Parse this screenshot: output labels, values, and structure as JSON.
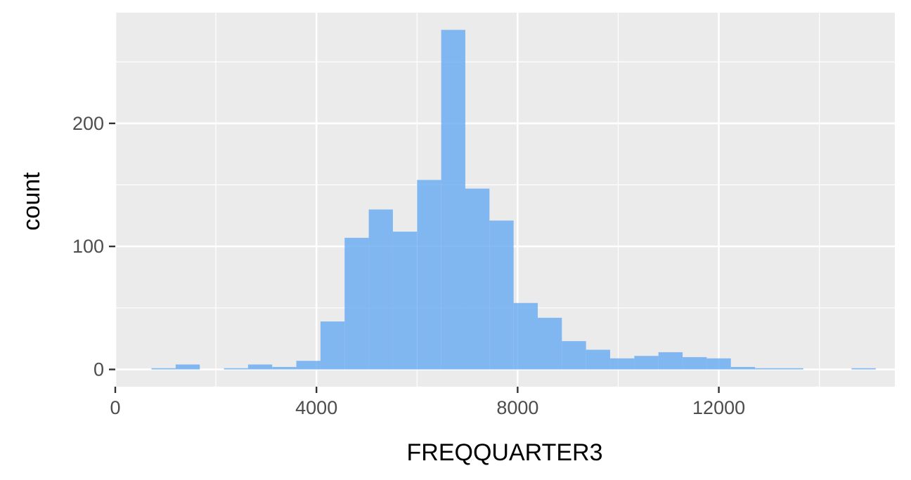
{
  "chart_data": {
    "type": "bar",
    "title": "",
    "xlabel": "FREQQUARTER3",
    "ylabel": "count",
    "xlim": [
      0,
      15500
    ],
    "ylim": [
      -14,
      290
    ],
    "x_ticks": [
      0,
      4000,
      8000,
      12000
    ],
    "x_tick_labels": [
      "0",
      "4000",
      "8000",
      "12000"
    ],
    "x_minor_ticks": [
      2000,
      6000,
      10000,
      14000
    ],
    "y_ticks": [
      0,
      100,
      200
    ],
    "y_tick_labels": [
      "0",
      "100",
      "200"
    ],
    "y_minor_ticks": [
      50,
      150,
      250
    ],
    "grid": true,
    "bins": [
      {
        "x0": 720,
        "x1": 1200,
        "count": 1
      },
      {
        "x0": 1200,
        "x1": 1680,
        "count": 4
      },
      {
        "x0": 1680,
        "x1": 2160,
        "count": 0
      },
      {
        "x0": 2160,
        "x1": 2640,
        "count": 1
      },
      {
        "x0": 2640,
        "x1": 3120,
        "count": 4
      },
      {
        "x0": 3120,
        "x1": 3600,
        "count": 2
      },
      {
        "x0": 3600,
        "x1": 4080,
        "count": 7
      },
      {
        "x0": 4080,
        "x1": 4560,
        "count": 39
      },
      {
        "x0": 4560,
        "x1": 5040,
        "count": 107
      },
      {
        "x0": 5040,
        "x1": 5520,
        "count": 130
      },
      {
        "x0": 5520,
        "x1": 6000,
        "count": 112
      },
      {
        "x0": 6000,
        "x1": 6480,
        "count": 154
      },
      {
        "x0": 6480,
        "x1": 6960,
        "count": 276
      },
      {
        "x0": 6960,
        "x1": 7440,
        "count": 147
      },
      {
        "x0": 7440,
        "x1": 7920,
        "count": 121
      },
      {
        "x0": 7920,
        "x1": 8400,
        "count": 54
      },
      {
        "x0": 8400,
        "x1": 8880,
        "count": 42
      },
      {
        "x0": 8880,
        "x1": 9360,
        "count": 23
      },
      {
        "x0": 9360,
        "x1": 9840,
        "count": 16
      },
      {
        "x0": 9840,
        "x1": 10320,
        "count": 9
      },
      {
        "x0": 10320,
        "x1": 10800,
        "count": 11
      },
      {
        "x0": 10800,
        "x1": 11280,
        "count": 14
      },
      {
        "x0": 11280,
        "x1": 11760,
        "count": 10
      },
      {
        "x0": 11760,
        "x1": 12240,
        "count": 9
      },
      {
        "x0": 12240,
        "x1": 12720,
        "count": 2
      },
      {
        "x0": 12720,
        "x1": 13200,
        "count": 1
      },
      {
        "x0": 13200,
        "x1": 13680,
        "count": 1
      },
      {
        "x0": 13680,
        "x1": 14160,
        "count": 0
      },
      {
        "x0": 14160,
        "x1": 14640,
        "count": 0
      },
      {
        "x0": 14640,
        "x1": 15120,
        "count": 1
      }
    ],
    "colors": {
      "bar": "#66aaf2",
      "panel": "#ebebeb",
      "grid": "#ffffff",
      "tick_text": "#4d4d4d",
      "axis_title": "#000000",
      "axis_tick": "#333333"
    }
  }
}
